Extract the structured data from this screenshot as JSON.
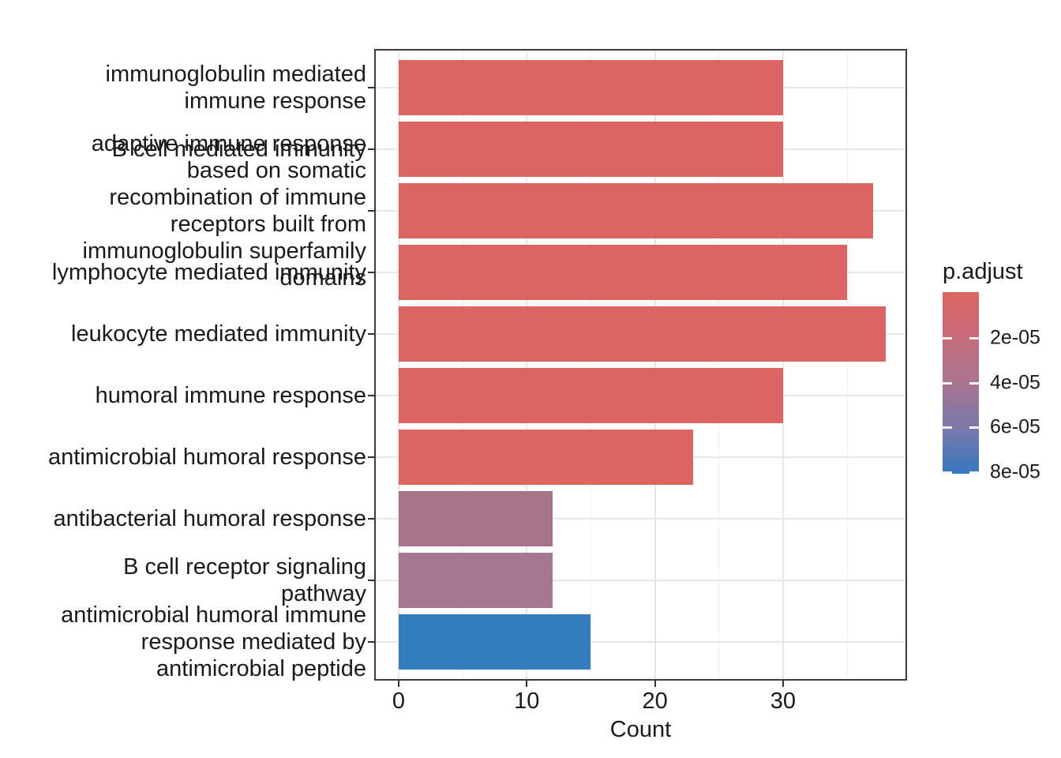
{
  "chart_data": {
    "type": "bar",
    "orientation": "horizontal",
    "title": "",
    "xlabel": "Count",
    "ylabel": "",
    "xlim": [
      -1.9,
      39.9
    ],
    "x_ticks": [
      0,
      10,
      20,
      30
    ],
    "x_tick_labels": [
      "0",
      "10",
      "20",
      "30"
    ],
    "x_minor_ticks": [
      5,
      15,
      25,
      35
    ],
    "grid": true,
    "categories": [
      "immunoglobulin mediated immune response",
      "B cell mediated immunity",
      "adaptive immune response based on somatic recombination of immune receptors built from immunoglobulin superfamily domains",
      "lymphocyte mediated immunity",
      "leukocyte mediated immunity",
      "humoral immune response",
      "antimicrobial humoral response",
      "antibacterial humoral response",
      "B cell receptor signaling pathway",
      "antimicrobial humoral immune response mediated by antimicrobial peptide"
    ],
    "category_label_lines": [
      [
        "immunoglobulin mediated",
        "immune response"
      ],
      [
        "B cell mediated immunity"
      ],
      [
        "adaptive immune response",
        "based on somatic",
        "recombination of immune",
        "receptors built from",
        "immunoglobulin superfamily",
        "domains"
      ],
      [
        "lymphocyte mediated immunity"
      ],
      [
        "leukocyte mediated immunity"
      ],
      [
        "humoral immune response"
      ],
      [
        "antimicrobial humoral response"
      ],
      [
        "antibacterial humoral response"
      ],
      [
        "B cell receptor signaling",
        "pathway"
      ],
      [
        "antimicrobial humoral immune",
        "response mediated by",
        "antimicrobial peptide"
      ]
    ],
    "values": [
      30,
      30,
      37,
      35,
      38,
      30,
      23,
      12,
      12,
      15
    ],
    "bar_colors": [
      "#DD6561",
      "#DD6561",
      "#DD6561",
      "#DD6561",
      "#DD6561",
      "#DD6561",
      "#DD6561",
      "#A7748B",
      "#A6778E",
      "#337CBD"
    ],
    "legend": {
      "title": "p.adjust",
      "position": "right",
      "tick_labels": [
        "2e-05",
        "4e-05",
        "6e-05",
        "8e-05"
      ],
      "gradient_stops": [
        "#DD6460",
        "#C66C7B",
        "#A87490",
        "#7A79AC",
        "#3578BE"
      ],
      "low_color": "#DD6460",
      "high_color": "#3578BE"
    }
  }
}
